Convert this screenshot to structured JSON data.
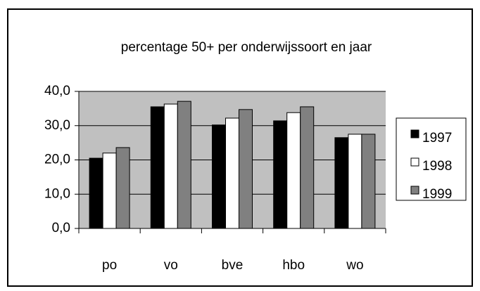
{
  "chart_data": {
    "type": "bar",
    "title": "percentage 50+ per onderwijssoort en jaar",
    "categories": [
      "po",
      "vo",
      "bve",
      "hbo",
      "wo"
    ],
    "series": [
      {
        "name": "1997",
        "color": "#000000",
        "values": [
          20.5,
          35.5,
          30.2,
          31.4,
          26.5
        ]
      },
      {
        "name": "1998",
        "color": "#ffffff",
        "values": [
          22,
          36.3,
          32.2,
          33.8,
          27.5
        ]
      },
      {
        "name": "1999",
        "color": "#808080",
        "values": [
          23.6,
          37.1,
          34.7,
          35.5,
          27.5
        ]
      }
    ],
    "ylim": [
      0,
      40
    ],
    "yticks": [
      {
        "value": 0,
        "label": "0,0"
      },
      {
        "value": 10,
        "label": "10,0"
      },
      {
        "value": 20,
        "label": "20,0"
      },
      {
        "value": 30,
        "label": "30,0"
      },
      {
        "value": 40,
        "label": "40,0"
      }
    ],
    "grid": true,
    "plot_background": "#c0c0c0",
    "legend": "right"
  }
}
